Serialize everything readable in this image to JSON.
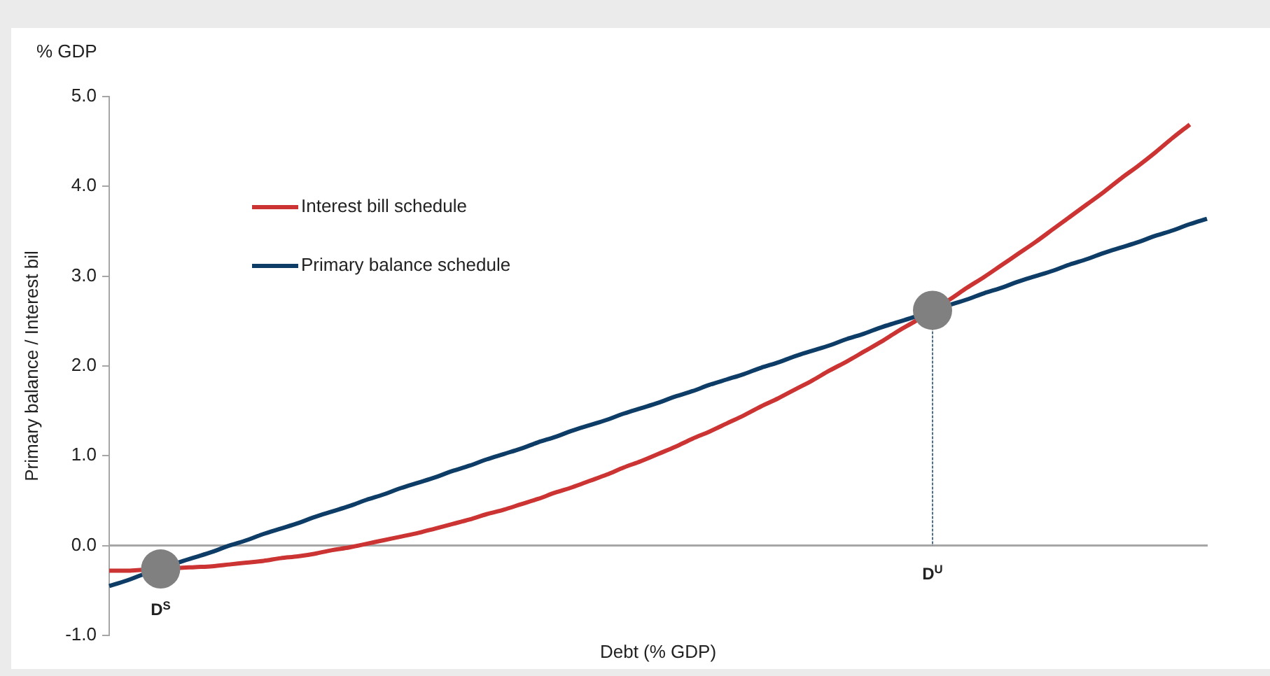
{
  "chart_data": {
    "type": "line",
    "subtitle": "% GDP",
    "xlabel": "Debt (% GDP)",
    "ylabel": "Primary balance / Interest bil",
    "legend": "top left",
    "marker": "none",
    "line_style": "solid",
    "categories": [
      null,
      null,
      null,
      null,
      null,
      null,
      null,
      null,
      null,
      null,
      null,
      null,
      null,
      null,
      null,
      null,
      null,
      null,
      null,
      null,
      null,
      null,
      null,
      null,
      null,
      null,
      null,
      null,
      null,
      null,
      null,
      null,
      null,
      null,
      null,
      null,
      null,
      null,
      null,
      null,
      null,
      null,
      null,
      null,
      null,
      null,
      null,
      null,
      null,
      null,
      null,
      null,
      null,
      null,
      null,
      null,
      null,
      null,
      null,
      null,
      null,
      null,
      null,
      null,
      null
    ],
    "ylim": [
      -1,
      5
    ],
    "yticks": [
      {
        "value": -1,
        "label": "-1.0"
      },
      {
        "value": 0,
        "label": "0.0"
      },
      {
        "value": 1,
        "label": "1.0"
      },
      {
        "value": 2,
        "label": "2.0"
      },
      {
        "value": 3,
        "label": "3.0"
      },
      {
        "value": 4,
        "label": "4.0"
      },
      {
        "value": 5,
        "label": "5.0"
      }
    ],
    "series": [
      {
        "name": "Interest bill schedule",
        "color": "#cc3333",
        "values": [
          -0.28,
          -0.28,
          -0.27,
          -0.27,
          -0.25,
          -0.24,
          -0.23,
          -0.21,
          -0.19,
          -0.17,
          -0.14,
          -0.12,
          -0.09,
          -0.05,
          -0.02,
          0.02,
          0.06,
          0.1,
          0.14,
          0.19,
          0.24,
          0.29,
          0.35,
          0.4,
          0.46,
          0.52,
          0.59,
          0.65,
          0.72,
          0.79,
          0.87,
          0.94,
          1.02,
          1.1,
          1.19,
          1.27,
          1.36,
          1.45,
          1.55,
          1.64,
          1.74,
          1.84,
          1.95,
          2.05,
          2.16,
          2.27,
          2.39,
          2.5,
          2.62,
          2.74,
          2.87,
          2.99,
          3.12,
          3.25,
          3.38,
          3.52,
          3.66,
          3.8,
          3.94,
          4.09,
          4.23,
          4.38,
          4.54,
          4.69,
          null
        ]
      },
      {
        "name": "Primary balance schedule",
        "color": "#0d3c66",
        "values": [
          -0.45,
          -0.39,
          -0.32,
          -0.26,
          -0.19,
          -0.13,
          -0.07,
          0.0,
          0.06,
          0.13,
          0.19,
          0.25,
          0.32,
          0.38,
          0.44,
          0.51,
          0.57,
          0.64,
          0.7,
          0.76,
          0.83,
          0.89,
          0.96,
          1.02,
          1.08,
          1.15,
          1.21,
          1.28,
          1.34,
          1.4,
          1.47,
          1.53,
          1.59,
          1.66,
          1.72,
          1.79,
          1.85,
          1.91,
          1.98,
          2.04,
          2.11,
          2.17,
          2.23,
          2.3,
          2.36,
          2.43,
          2.49,
          2.55,
          2.62,
          2.68,
          2.74,
          2.81,
          2.87,
          2.94,
          3.0,
          3.06,
          3.13,
          3.19,
          3.26,
          3.32,
          3.38,
          3.45,
          3.51,
          3.58,
          3.64
        ]
      },
      {
        "type": "scatter",
        "marker": "circle",
        "color": "#808080",
        "values": [
          null,
          null,
          null,
          -0.26,
          null,
          null,
          null,
          null,
          null,
          null,
          null,
          null,
          null,
          null,
          null,
          null,
          null,
          null,
          null,
          null,
          null,
          null,
          null,
          null,
          null,
          null,
          null,
          null,
          null,
          null,
          null,
          null,
          null,
          null,
          null,
          null,
          null,
          null,
          null,
          null,
          null,
          null,
          null,
          null,
          null,
          null,
          null,
          null,
          2.62,
          null,
          null,
          null,
          null,
          null,
          null,
          null,
          null,
          null,
          null,
          null,
          null,
          null,
          null,
          null,
          null
        ]
      }
    ],
    "annotations": [
      "D$^{S}$",
      "D$^{U}$"
    ]
  }
}
